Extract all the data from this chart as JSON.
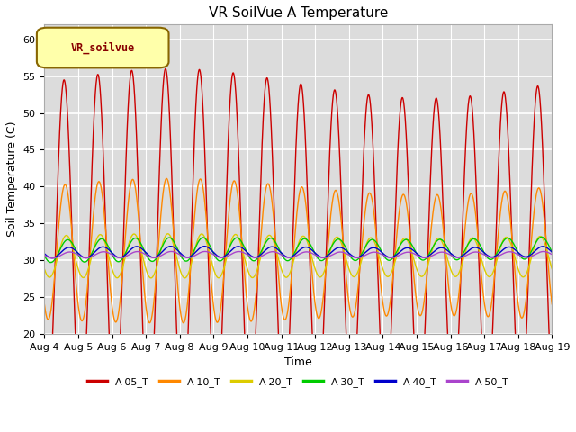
{
  "title": "VR SoilVue A Temperature",
  "xlabel": "Time",
  "ylabel": "Soil Temperature (C)",
  "ylim": [
    20,
    62
  ],
  "yticks": [
    20,
    25,
    30,
    35,
    40,
    45,
    50,
    55,
    60
  ],
  "plot_bg_color": "#dcdcdc",
  "fig_bg_color": "#ffffff",
  "legend_label": "VR_soilvue",
  "series_labels": [
    "A-05_T",
    "A-10_T",
    "A-20_T",
    "A-30_T",
    "A-40_T",
    "A-50_T"
  ],
  "series_colors": [
    "#cc0000",
    "#ff8800",
    "#ddcc00",
    "#00cc00",
    "#0000cc",
    "#aa44cc"
  ],
  "num_days": 15,
  "start_day": 4,
  "points_per_day": 144
}
